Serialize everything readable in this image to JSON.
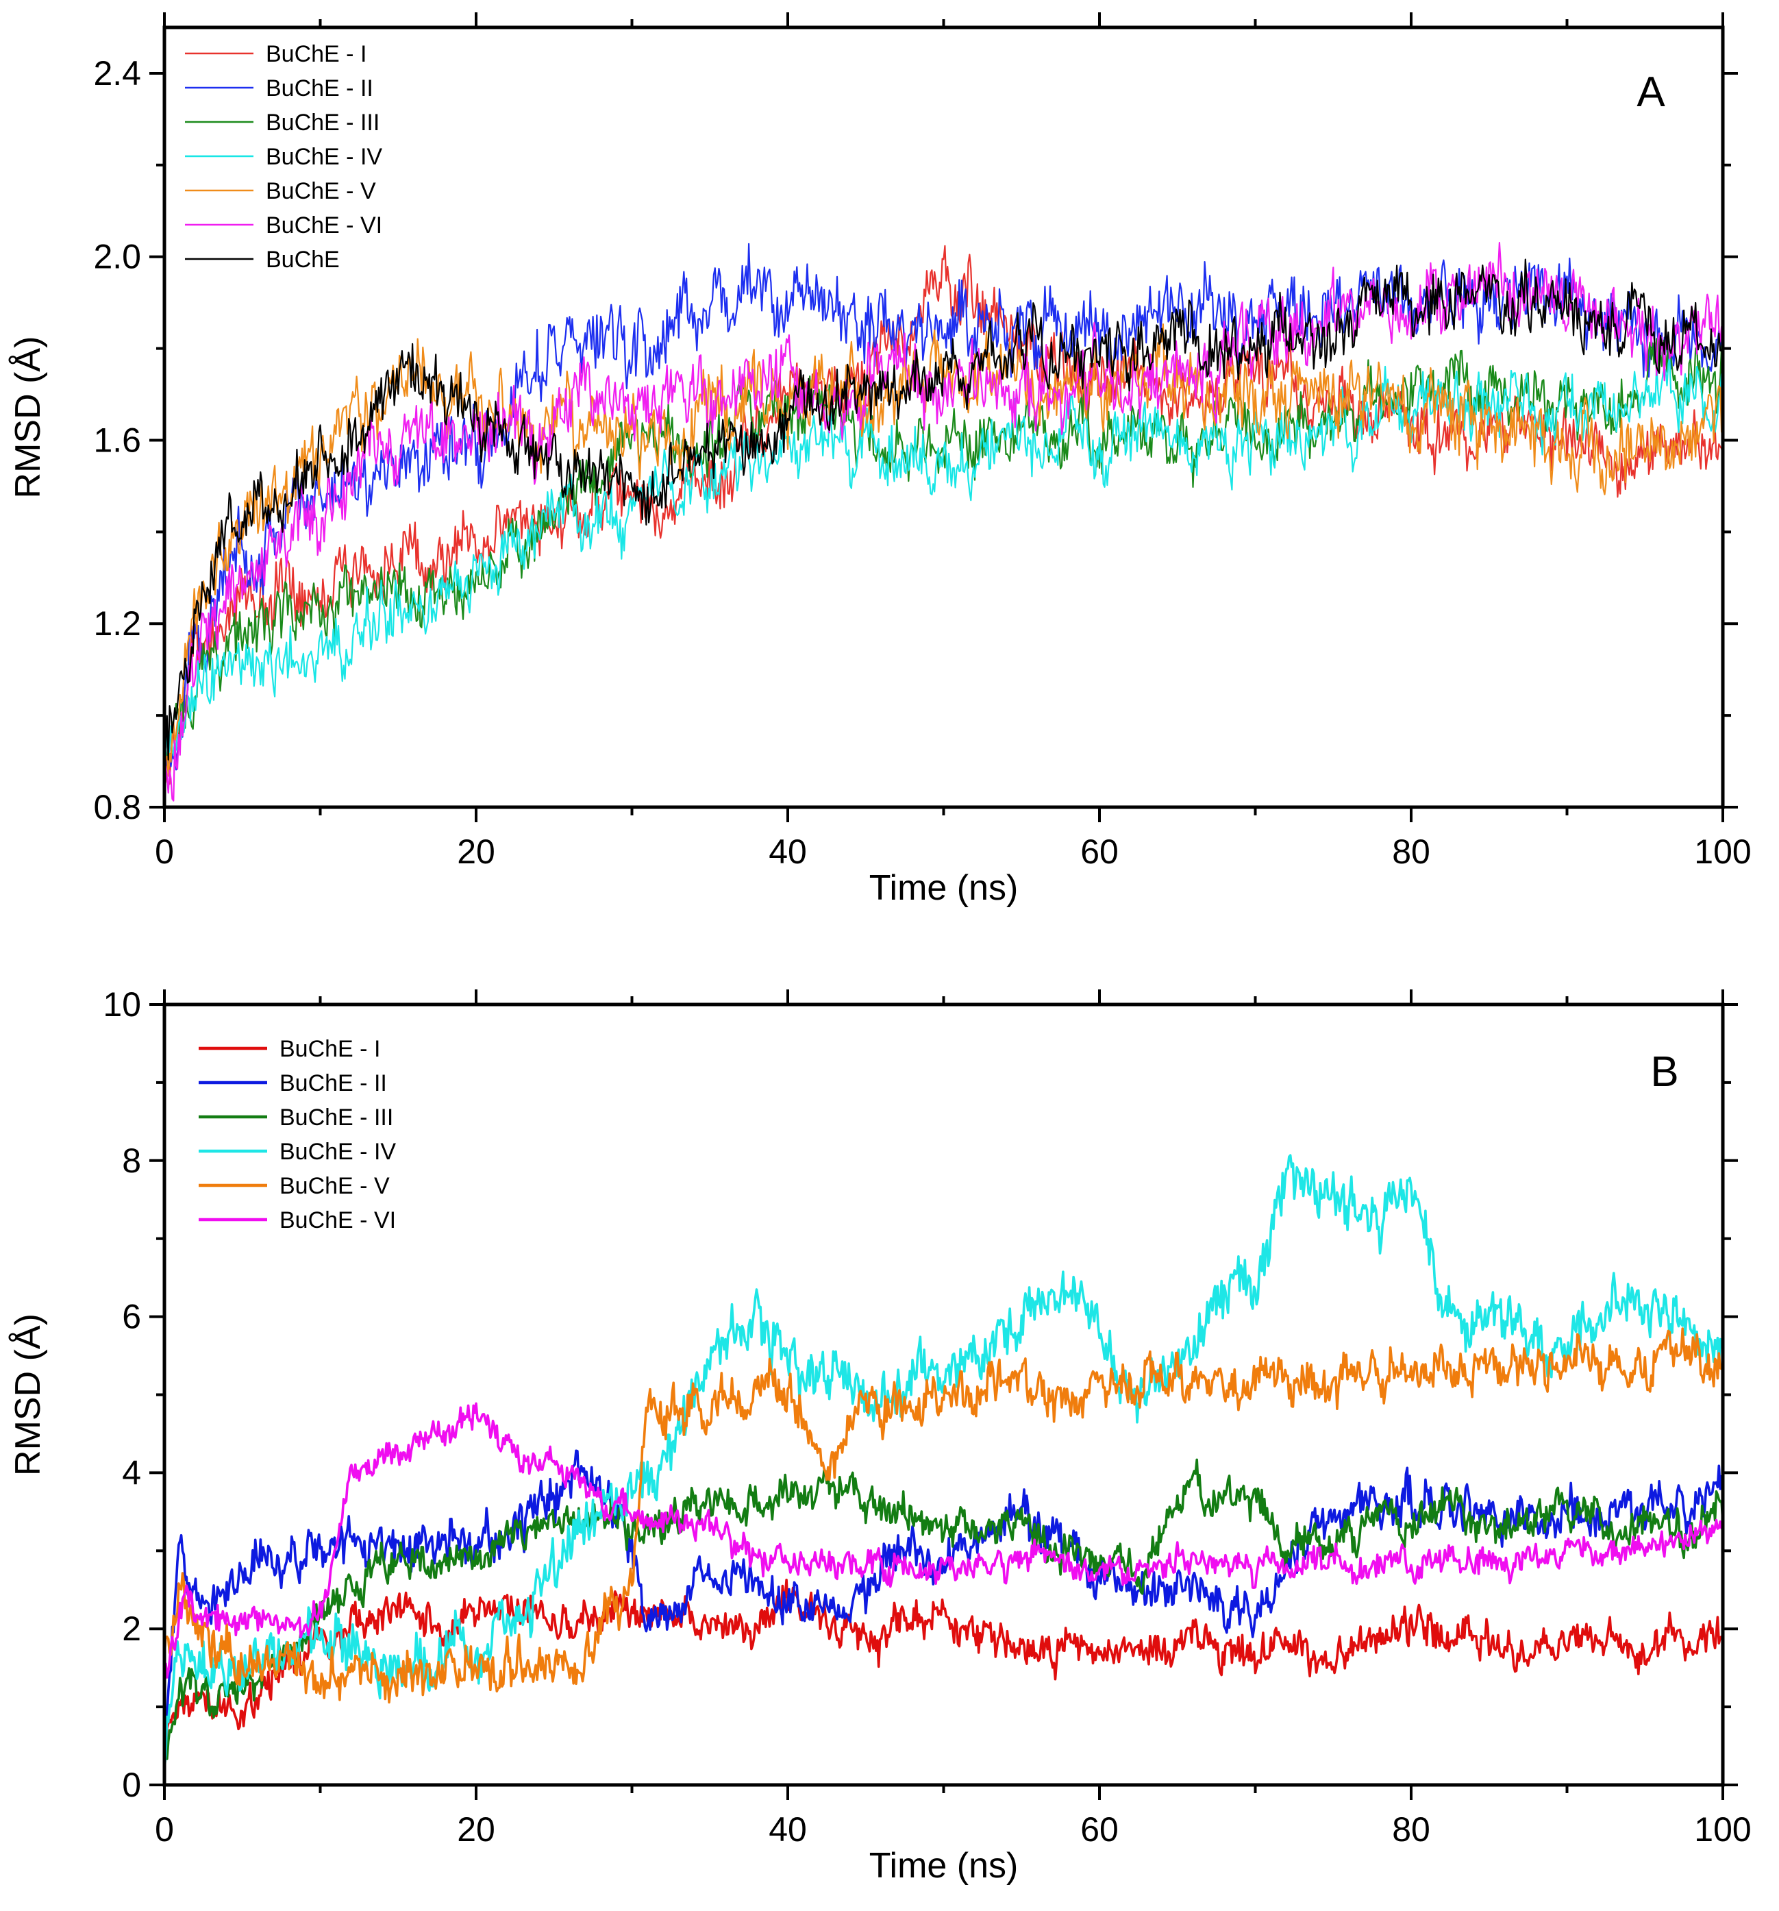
{
  "chart_data": [
    {
      "panel_label": "A",
      "type": "line",
      "title": "",
      "xlabel": "Time (ns)",
      "ylabel": "RMSD (Å)",
      "xlim": [
        0,
        100
      ],
      "ylim": [
        0.8,
        2.5
      ],
      "xticks": [
        0,
        20,
        40,
        60,
        80,
        100
      ],
      "yticks": [
        0.8,
        1.2,
        1.6,
        2.0,
        2.4
      ],
      "xtick_labels": [
        "0",
        "20",
        "40",
        "60",
        "80",
        "100"
      ],
      "ytick_labels": [
        "0.8",
        "1.2",
        "1.6",
        "2.0",
        "2.4"
      ],
      "legend_position": "top-left",
      "grid": false,
      "x": [
        0,
        2,
        5,
        10,
        15,
        20,
        25,
        30,
        35,
        40,
        45,
        50,
        55,
        60,
        65,
        70,
        75,
        80,
        85,
        90,
        95,
        100
      ],
      "series": [
        {
          "name": "BuChE - I",
          "color": "#e8322d",
          "noise": 0.07,
          "values": [
            0.85,
            1.15,
            1.25,
            1.3,
            1.33,
            1.38,
            1.45,
            1.45,
            1.5,
            1.7,
            1.72,
            1.95,
            1.8,
            1.75,
            1.72,
            1.72,
            1.7,
            1.62,
            1.6,
            1.58,
            1.55,
            1.6
          ]
        },
        {
          "name": "BuChE - II",
          "color": "#1d2ff0",
          "noise": 0.08,
          "values": [
            0.9,
            1.15,
            1.35,
            1.5,
            1.55,
            1.6,
            1.8,
            1.8,
            1.9,
            1.92,
            1.85,
            1.85,
            1.85,
            1.82,
            1.9,
            1.85,
            1.88,
            1.9,
            1.92,
            1.9,
            1.85,
            1.82
          ]
        },
        {
          "name": "BuChE - III",
          "color": "#1a8a1a",
          "noise": 0.07,
          "values": [
            0.88,
            1.1,
            1.18,
            1.22,
            1.25,
            1.3,
            1.45,
            1.6,
            1.6,
            1.7,
            1.62,
            1.58,
            1.62,
            1.62,
            1.6,
            1.62,
            1.65,
            1.72,
            1.7,
            1.68,
            1.7,
            1.75
          ]
        },
        {
          "name": "BuChE - IV",
          "color": "#18e6e6",
          "noise": 0.07,
          "values": [
            0.9,
            1.05,
            1.12,
            1.15,
            1.22,
            1.28,
            1.45,
            1.45,
            1.5,
            1.6,
            1.58,
            1.55,
            1.58,
            1.62,
            1.6,
            1.6,
            1.62,
            1.68,
            1.68,
            1.65,
            1.66,
            1.7
          ]
        },
        {
          "name": "BuChE - V",
          "color": "#f08c1a",
          "noise": 0.08,
          "values": [
            0.9,
            1.25,
            1.42,
            1.55,
            1.75,
            1.65,
            1.65,
            1.6,
            1.65,
            1.72,
            1.72,
            1.72,
            1.7,
            1.72,
            1.75,
            1.72,
            1.7,
            1.68,
            1.65,
            1.62,
            1.6,
            1.65
          ]
        },
        {
          "name": "BuChE - VI",
          "color": "#f01ef0",
          "noise": 0.08,
          "values": [
            0.82,
            1.18,
            1.3,
            1.45,
            1.58,
            1.62,
            1.65,
            1.7,
            1.7,
            1.72,
            1.72,
            1.72,
            1.72,
            1.72,
            1.75,
            1.8,
            1.85,
            1.9,
            1.92,
            1.9,
            1.85,
            1.82
          ]
        },
        {
          "name": "BuChE",
          "color": "#000000",
          "noise": 0.07,
          "values": [
            0.9,
            1.28,
            1.42,
            1.55,
            1.72,
            1.65,
            1.55,
            1.5,
            1.58,
            1.65,
            1.72,
            1.75,
            1.78,
            1.8,
            1.8,
            1.8,
            1.85,
            1.9,
            1.92,
            1.88,
            1.85,
            1.8
          ]
        }
      ]
    },
    {
      "panel_label": "B",
      "type": "line",
      "title": "",
      "xlabel": "Time (ns)",
      "ylabel": "RMSD (Å)",
      "xlim": [
        0,
        100
      ],
      "ylim": [
        0,
        10
      ],
      "xticks": [
        0,
        20,
        40,
        60,
        80,
        100
      ],
      "yticks": [
        0,
        2,
        4,
        6,
        8,
        10
      ],
      "xtick_labels": [
        "0",
        "20",
        "40",
        "60",
        "80",
        "100"
      ],
      "ytick_labels": [
        "0",
        "2",
        "4",
        "6",
        "8",
        "10"
      ],
      "legend_position": "top-left",
      "grid": false,
      "x": [
        0,
        1,
        3,
        5,
        8,
        10,
        12,
        15,
        18,
        20,
        22,
        25,
        27,
        30,
        31,
        33,
        35,
        38,
        40,
        43,
        45,
        48,
        50,
        52,
        55,
        57,
        60,
        63,
        65,
        67,
        70,
        72,
        75,
        78,
        80,
        82,
        85,
        88,
        90,
        92,
        95,
        98,
        100
      ],
      "series": [
        {
          "name": "BuChE - I",
          "color": "#e00d0d",
          "noise": 0.25,
          "values": [
            0.5,
            1.2,
            1.1,
            1.0,
            1.5,
            1.8,
            2.0,
            2.2,
            2.0,
            2.1,
            2.3,
            2.0,
            2.2,
            2.3,
            2.2,
            2.1,
            2.0,
            2.1,
            2.2,
            2.0,
            2.0,
            2.0,
            2.2,
            1.9,
            1.8,
            1.7,
            1.7,
            1.7,
            1.8,
            1.7,
            1.7,
            1.8,
            1.7,
            1.9,
            1.9,
            1.9,
            1.7,
            1.7,
            1.8,
            1.8,
            1.8,
            1.8,
            1.9
          ]
        },
        {
          "name": "BuChE - II",
          "color": "#0d1ae0",
          "noise": 0.3,
          "values": [
            0.5,
            3.0,
            2.5,
            2.8,
            3.0,
            3.0,
            3.1,
            3.0,
            3.0,
            3.1,
            3.1,
            3.8,
            4.0,
            3.0,
            2.0,
            2.2,
            2.8,
            2.5,
            2.4,
            2.5,
            2.5,
            3.0,
            2.8,
            3.0,
            3.5,
            3.0,
            2.8,
            2.5,
            2.5,
            2.4,
            2.2,
            2.8,
            3.5,
            3.5,
            3.6,
            3.7,
            3.5,
            3.4,
            3.5,
            3.5,
            3.5,
            3.5,
            3.8
          ]
        },
        {
          "name": "BuChE - III",
          "color": "#137d13",
          "noise": 0.25,
          "values": [
            0.5,
            1.3,
            1.1,
            1.2,
            1.6,
            2.2,
            2.6,
            2.8,
            2.9,
            3.0,
            3.1,
            3.2,
            3.4,
            3.3,
            3.4,
            3.5,
            3.6,
            3.7,
            3.7,
            3.8,
            3.6,
            3.5,
            3.2,
            3.3,
            3.4,
            3.0,
            2.8,
            2.8,
            3.8,
            3.8,
            3.7,
            3.0,
            3.2,
            3.4,
            3.4,
            3.5,
            3.5,
            3.4,
            3.4,
            3.4,
            3.3,
            3.3,
            3.5
          ]
        },
        {
          "name": "BuChE - IV",
          "color": "#1ee6e6",
          "noise": 0.35,
          "values": [
            0.5,
            1.8,
            1.5,
            1.5,
            1.6,
            1.7,
            1.7,
            1.6,
            1.6,
            1.8,
            2.0,
            2.8,
            3.2,
            3.8,
            4.0,
            4.5,
            5.5,
            5.8,
            5.5,
            5.2,
            4.8,
            5.2,
            5.5,
            5.5,
            6.0,
            6.3,
            5.5,
            5.0,
            5.2,
            6.0,
            6.5,
            7.8,
            7.5,
            7.2,
            7.8,
            6.2,
            6.0,
            5.8,
            5.5,
            6.3,
            6.0,
            6.0,
            5.8
          ]
        },
        {
          "name": "BuChE - V",
          "color": "#f07d0d",
          "noise": 0.3,
          "values": [
            1.8,
            2.4,
            2.0,
            1.6,
            1.5,
            1.4,
            1.4,
            1.4,
            1.5,
            1.4,
            1.6,
            1.2,
            1.6,
            2.5,
            4.8,
            5.0,
            4.9,
            5.0,
            5.0,
            4.2,
            4.8,
            5.0,
            5.0,
            5.2,
            5.2,
            5.1,
            5.1,
            5.2,
            5.2,
            5.1,
            5.1,
            5.2,
            5.3,
            5.2,
            5.3,
            5.4,
            5.4,
            5.3,
            5.3,
            5.4,
            5.4,
            5.5,
            5.4
          ]
        },
        {
          "name": "BuChE - VI",
          "color": "#f00df0",
          "noise": 0.2,
          "values": [
            1.5,
            2.2,
            2.1,
            2.1,
            2.1,
            2.2,
            4.0,
            4.3,
            4.5,
            4.8,
            4.3,
            4.1,
            3.8,
            3.5,
            3.5,
            3.4,
            3.3,
            3.0,
            2.9,
            2.9,
            2.8,
            2.8,
            2.8,
            2.8,
            2.9,
            2.8,
            2.8,
            2.8,
            2.9,
            2.8,
            2.8,
            2.8,
            2.8,
            2.9,
            2.9,
            2.9,
            2.9,
            2.9,
            3.0,
            3.0,
            3.0,
            3.2,
            3.4
          ]
        }
      ]
    }
  ]
}
